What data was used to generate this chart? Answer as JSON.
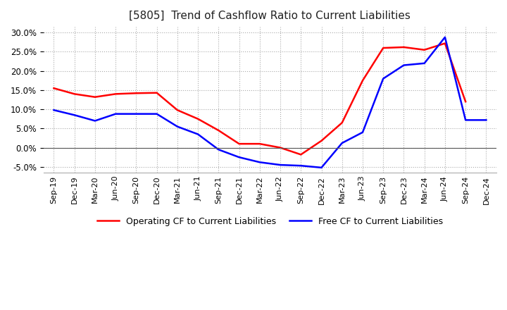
{
  "title": "[5805]  Trend of Cashflow Ratio to Current Liabilities",
  "x_labels": [
    "Sep-19",
    "Dec-19",
    "Mar-20",
    "Jun-20",
    "Sep-20",
    "Dec-20",
    "Mar-21",
    "Jun-21",
    "Sep-21",
    "Dec-21",
    "Mar-22",
    "Jun-22",
    "Sep-22",
    "Dec-22",
    "Mar-23",
    "Jun-23",
    "Sep-23",
    "Dec-23",
    "Mar-24",
    "Jun-24",
    "Sep-24",
    "Dec-24"
  ],
  "operating_cf": [
    0.155,
    0.14,
    0.132,
    0.14,
    0.142,
    0.143,
    0.098,
    0.075,
    0.045,
    0.01,
    0.01,
    0.0,
    -0.018,
    0.018,
    0.065,
    0.175,
    0.26,
    0.262,
    0.255,
    0.272,
    0.12,
    null
  ],
  "free_cf": [
    0.098,
    0.085,
    0.07,
    0.088,
    0.088,
    0.088,
    0.055,
    0.035,
    -0.005,
    -0.025,
    -0.038,
    -0.045,
    -0.047,
    -0.052,
    0.012,
    0.04,
    0.18,
    0.215,
    0.22,
    0.288,
    0.072,
    0.072
  ],
  "operating_color": "#ff0000",
  "free_color": "#0000ff",
  "ylim": [
    -0.065,
    0.315
  ],
  "yticks": [
    -0.05,
    0.0,
    0.05,
    0.1,
    0.15,
    0.2,
    0.25,
    0.3
  ],
  "background_color": "#ffffff",
  "grid_color": "#aaaaaa",
  "title_fontsize": 11,
  "legend_fontsize": 9
}
